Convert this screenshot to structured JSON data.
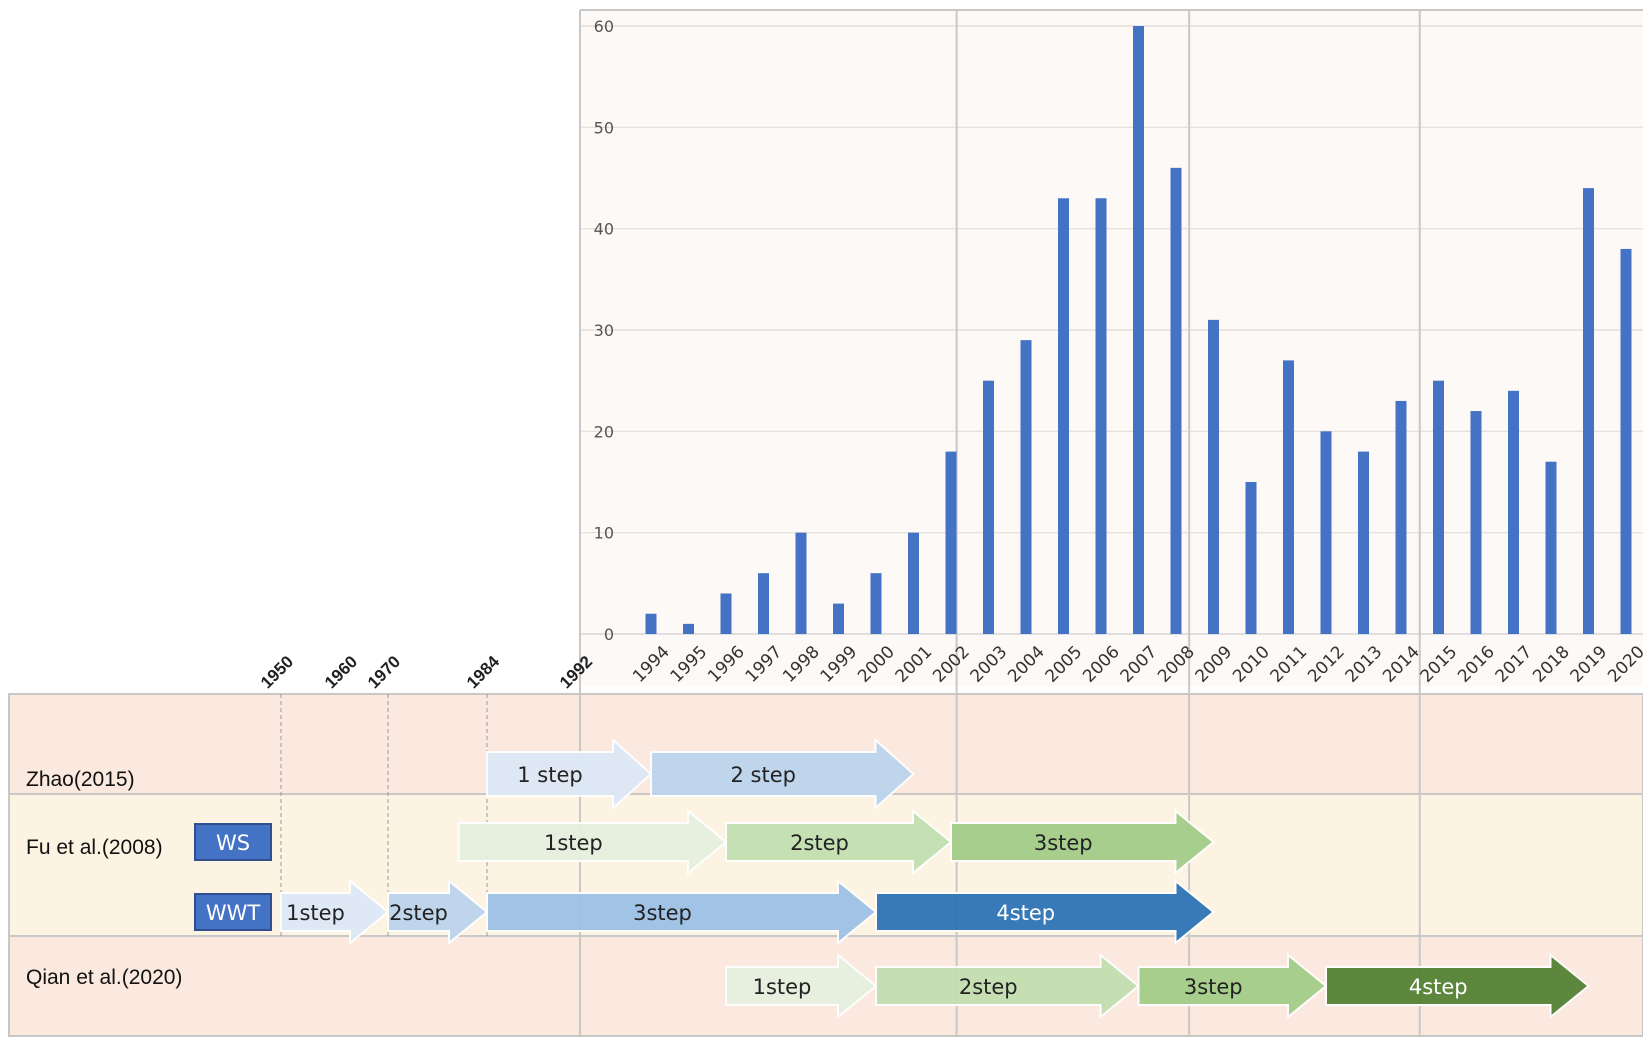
{
  "chart_data": {
    "type": "bar",
    "categories": [
      "1994",
      "1995",
      "1996",
      "1997",
      "1998",
      "1999",
      "2000",
      "2001",
      "2002",
      "2003",
      "2004",
      "2005",
      "2006",
      "2007",
      "2008",
      "2009",
      "2010",
      "2011",
      "2012",
      "2013",
      "2014",
      "2015",
      "2016",
      "2017",
      "2018",
      "2019",
      "2020"
    ],
    "values": [
      2,
      1,
      4,
      6,
      10,
      3,
      6,
      10,
      18,
      25,
      29,
      43,
      43,
      60,
      46,
      31,
      15,
      27,
      20,
      18,
      23,
      25,
      22,
      24,
      17,
      44,
      38
    ],
    "ylim": [
      0,
      60
    ],
    "yticks": [
      "0",
      "10",
      "20",
      "30",
      "40",
      "50",
      "60"
    ],
    "bar_color": "#4472C4",
    "grid": true,
    "legend": "none"
  },
  "timeline": {
    "early_years": [
      "1950",
      "1960",
      "1970",
      "1984",
      "1992"
    ],
    "rows": [
      {
        "label": "Zhao(2015)",
        "arrows": [
          {
            "label": "1 step",
            "start": 1984,
            "end": 1994,
            "color": "#dde9f6",
            "text_color": "#222222"
          },
          {
            "label": "2 step",
            "start": 1994,
            "end": 2001,
            "color": "#bcd4ec",
            "text_color": "#222222"
          }
        ]
      },
      {
        "label": "Fu et al.(2008)",
        "tracks": [
          {
            "box": "WS",
            "arrows": [
              {
                "label": "1step",
                "start": 1980,
                "end": 1996,
                "color": "#e6f0df",
                "text_color": "#222222"
              },
              {
                "label": "2step",
                "start": 1996,
                "end": 2002,
                "color": "#c3dfb1",
                "text_color": "#222222"
              },
              {
                "label": "3step",
                "start": 2002,
                "end": 2009,
                "color": "#a3cd89",
                "text_color": "#222222"
              }
            ]
          },
          {
            "box": "WWT",
            "arrows": [
              {
                "label": "1step",
                "start": 1950,
                "end": 1970,
                "color": "#dde9f6",
                "text_color": "#222222"
              },
              {
                "label": "2step",
                "start": 1970,
                "end": 1984,
                "color": "#bcd4ec",
                "text_color": "#222222"
              },
              {
                "label": "3step",
                "start": 1984,
                "end": 2000,
                "color": "#9dc1e6",
                "text_color": "#222222"
              },
              {
                "label": "4step",
                "start": 2000,
                "end": 2009,
                "color": "#2e74b5",
                "text_color": "#ffffff"
              }
            ]
          }
        ]
      },
      {
        "label": "Qian et al.(2020)",
        "arrows": [
          {
            "label": "1step",
            "start": 1996,
            "end": 2000,
            "color": "#e6f0df",
            "text_color": "#222222"
          },
          {
            "label": "2step",
            "start": 2000,
            "end": 2007,
            "color": "#c3dfb1",
            "text_color": "#222222"
          },
          {
            "label": "3step",
            "start": 2007,
            "end": 2012,
            "color": "#a3cd89",
            "text_color": "#222222"
          },
          {
            "label": "4step",
            "start": 2012,
            "end": 2019,
            "color": "#548235",
            "text_color": "#ffffff"
          }
        ]
      }
    ]
  }
}
